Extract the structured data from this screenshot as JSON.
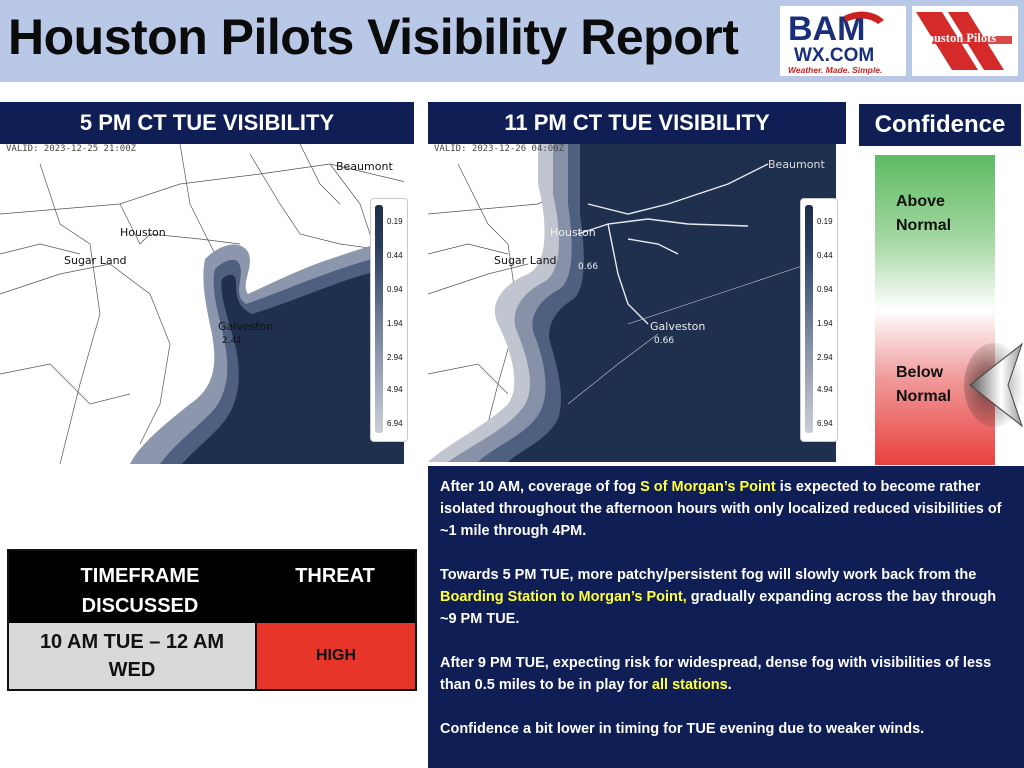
{
  "header": {
    "title": "Houston Pilots Visibility Report",
    "bam_logo": {
      "line1": "BAM",
      "line2": "WX.COM",
      "tagline": "Weather. Made. Simple."
    },
    "houston_pilots_logo": {
      "text": "Houston Pilots"
    }
  },
  "maps": {
    "left": {
      "heading": "5 PM CT TUE VISIBILITY",
      "valid": "VALID: 2023-12-25 21:00Z",
      "cities": {
        "beaumont": "Beaumont",
        "houston": "Houston",
        "sugar_land": "Sugar Land",
        "galveston": "Galveston"
      },
      "station_value": "2.41"
    },
    "right": {
      "heading": "11 PM CT TUE VISIBILITY",
      "valid": "VALID: 2023-12-26 04:00Z",
      "cities": {
        "beaumont": "Beaumont",
        "houston": "Houston",
        "sugar_land": "Sugar Land",
        "galveston": "Galveston"
      },
      "values": {
        "houston_bay": "0.66",
        "galveston": "0.66"
      }
    },
    "legend_ticks": [
      "0.19",
      "0.44",
      "0.94",
      "1.94",
      "2.94",
      "4.94",
      "6.94"
    ]
  },
  "confidence": {
    "heading": "Confidence",
    "above_line1": "Above",
    "above_line2": "Normal",
    "below_line1": "Below",
    "below_line2": "Normal",
    "indicator": "Below Normal",
    "colors": {
      "high": "#5dbb63",
      "low": "#e8413e"
    }
  },
  "threat_table": {
    "col_timeframe_line1": "TIMEFRAME",
    "col_timeframe_line2": "DISCUSSED",
    "col_threat": "THREAT",
    "timeframe_line1": "10 AM TUE – 12 AM",
    "timeframe_line2": "WED",
    "threat": "HIGH",
    "threat_color": "#e8352a"
  },
  "discussion": {
    "p1_a": "After 10 AM, coverage of fog ",
    "p1_hl": "S of Morgan’s Point",
    "p1_b": " is expected to become rather isolated throughout the afternoon hours with only localized reduced visibilities of ~1 mile through 4PM.",
    "p2_a": "Towards 5 PM TUE, more patchy/persistent fog will slowly work back from the ",
    "p2_hl": "Boarding Station to Morgan’s Point,",
    "p2_b": " gradually expanding across the bay through ~9 PM TUE.",
    "p3_a": "After 9 PM TUE, expecting risk for widespread, dense fog with visibilities of less than 0.5 miles to be in play for ",
    "p3_hl": "all stations",
    "p3_b": ".",
    "p4": "Confidence a bit lower in timing for TUE evening due to weaker winds."
  }
}
